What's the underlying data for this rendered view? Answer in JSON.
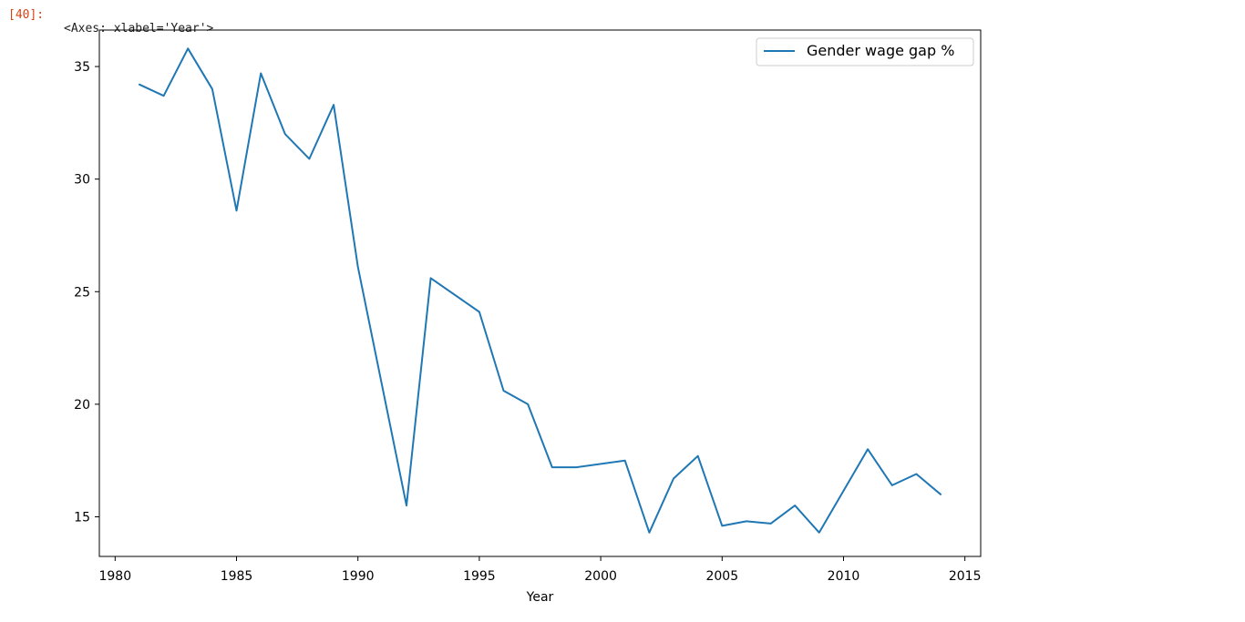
{
  "cell": {
    "prompt": "[40]:",
    "output_repr": "<Axes: xlabel='Year'>"
  },
  "colors": {
    "line": "#1f77b4",
    "axes": "#000000",
    "legend_border": "#cccccc",
    "prompt": "#d84315"
  },
  "chart_data": {
    "type": "line",
    "title": "",
    "xlabel": "Year",
    "ylabel": "",
    "xlim": [
      1979.35,
      2015.65
    ],
    "ylim": [
      13.24,
      36.62
    ],
    "xticks": [
      1980,
      1985,
      1990,
      1995,
      2000,
      2005,
      2010,
      2015
    ],
    "yticks": [
      15,
      20,
      25,
      30,
      35
    ],
    "grid": false,
    "legend_position": "top-right",
    "series": [
      {
        "name": "Gender wage gap %",
        "x": [
          1981,
          1982,
          1983,
          1984,
          1985,
          1986,
          1987,
          1988,
          1989,
          1990,
          1992,
          1993,
          1995,
          1996,
          1997,
          1998,
          1999,
          2001,
          2002,
          2003,
          2004,
          2005,
          2006,
          2007,
          2008,
          2009,
          2011,
          2012,
          2013,
          2014
        ],
        "values": [
          34.2,
          33.7,
          35.8,
          34.0,
          28.6,
          34.7,
          32.0,
          30.9,
          33.3,
          26.1,
          15.5,
          25.6,
          24.1,
          20.6,
          20.0,
          17.2,
          17.2,
          17.5,
          14.3,
          16.7,
          17.7,
          14.6,
          14.8,
          14.7,
          15.5,
          14.3,
          18.0,
          16.4,
          16.9,
          16.0
        ]
      }
    ]
  }
}
